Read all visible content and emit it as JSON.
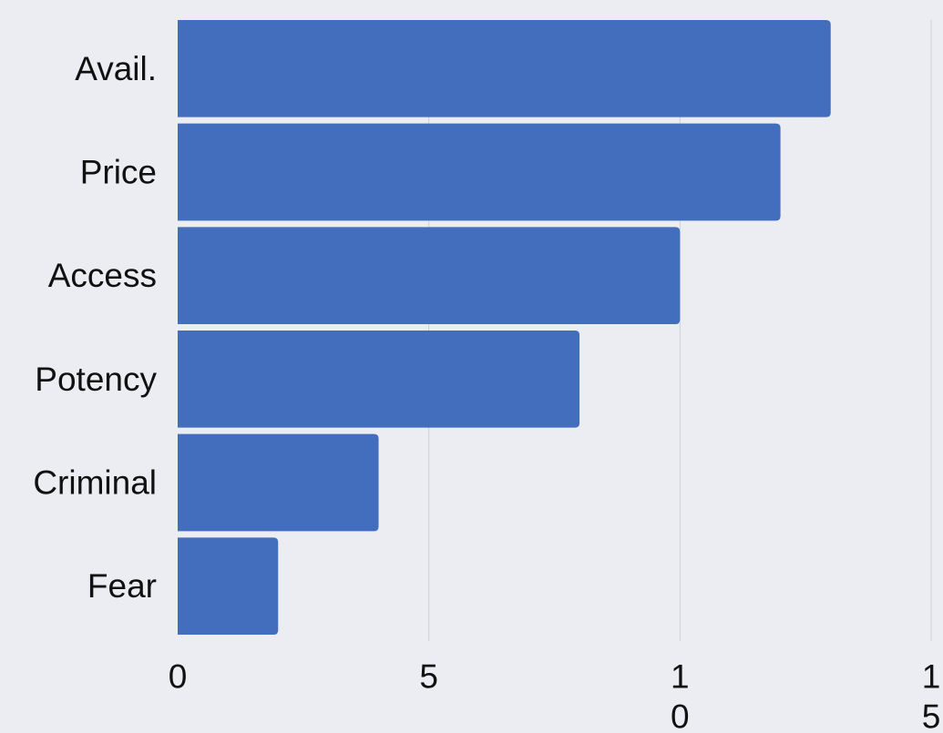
{
  "chart_data": {
    "type": "bar",
    "orientation": "horizontal",
    "categories": [
      "Avail.",
      "Price",
      "Access",
      "Potency",
      "Criminal",
      "Fear"
    ],
    "values": [
      13,
      12,
      10,
      8,
      4,
      2
    ],
    "xlim": [
      0,
      15
    ],
    "xticks": [
      0,
      5,
      10,
      15
    ],
    "xtick_labels": [
      {
        "value": 0,
        "lines": [
          "0"
        ]
      },
      {
        "value": 5,
        "lines": [
          "5"
        ]
      },
      {
        "value": 10,
        "lines": [
          "1",
          "0"
        ]
      },
      {
        "value": 15,
        "lines": [
          "1",
          "5"
        ]
      }
    ],
    "title": "",
    "xlabel": "",
    "ylabel": "",
    "grid": "vertical",
    "legend": "none",
    "colors": {
      "bar": "#426ebd",
      "grid": "#cfd0d5",
      "background": "#ecedf2",
      "text": "#111111"
    }
  }
}
